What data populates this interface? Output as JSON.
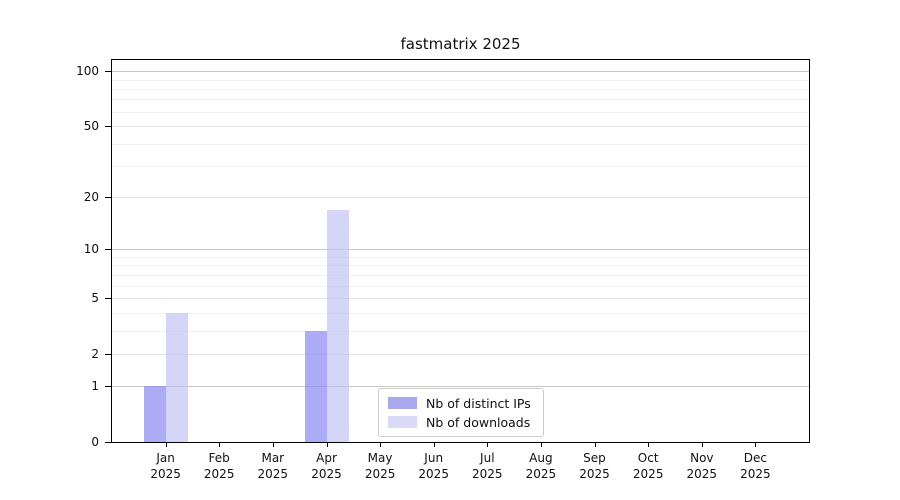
{
  "chart_data": {
    "type": "bar",
    "title": "fastmatrix 2025",
    "categories": [
      "Jan",
      "Feb",
      "Mar",
      "Apr",
      "May",
      "Jun",
      "Jul",
      "Aug",
      "Sep",
      "Oct",
      "Nov",
      "Dec"
    ],
    "year_label": "2025",
    "series": [
      {
        "name": "Nb of distinct IPs",
        "color": "#a9a9f0",
        "fill": "rgba(140,140,243,0.72)",
        "values": [
          1,
          0,
          0,
          3,
          0,
          0,
          0,
          0,
          0,
          0,
          0,
          0
        ]
      },
      {
        "name": "Nb of downloads",
        "color": "#d9d9f8",
        "fill": "rgba(190,190,245,0.65)",
        "values": [
          4,
          0,
          0,
          17,
          0,
          0,
          0,
          0,
          0,
          0,
          0,
          0
        ]
      }
    ],
    "yscale": "log1p",
    "ymax": 115,
    "yticks_major": [
      0,
      1,
      2,
      5,
      10,
      20,
      50,
      100
    ],
    "yticks_decade": [
      1,
      10,
      100
    ],
    "yticks_mid": [
      2,
      5,
      20,
      50
    ],
    "yticks_minor": [
      3,
      4,
      6,
      7,
      8,
      9,
      30,
      40,
      60,
      70,
      80,
      90
    ],
    "grid": "horizontal-only",
    "legend_position": "lower-center"
  }
}
